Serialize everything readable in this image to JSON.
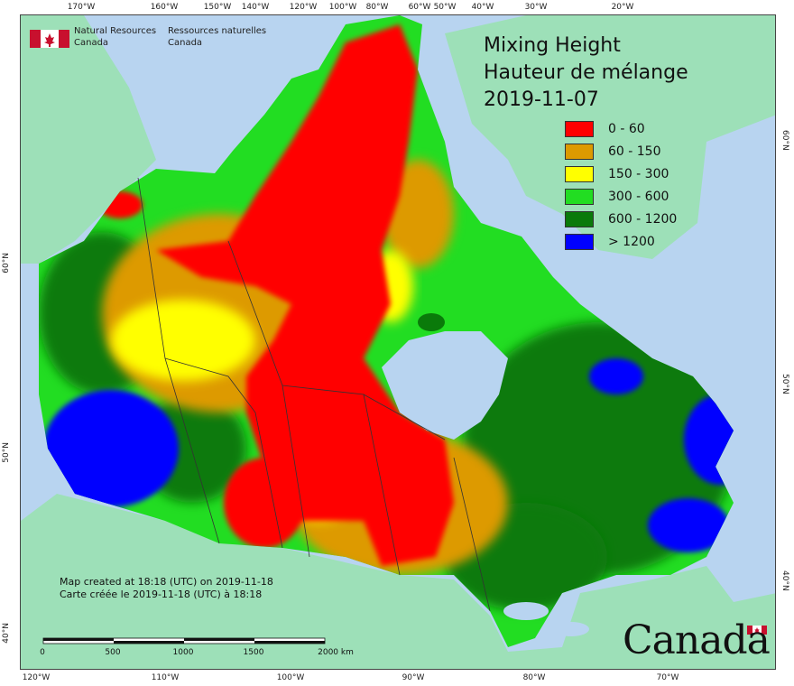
{
  "title": {
    "line1": "Mixing Height",
    "line2": "Hauteur de mélange",
    "date": "2019-11-07"
  },
  "legend": [
    {
      "label": "0 - 60",
      "color": "#ff0000"
    },
    {
      "label": "60 - 150",
      "color": "#dd9a00"
    },
    {
      "label": "150 - 300",
      "color": "#ffff00"
    },
    {
      "label": "300 - 600",
      "color": "#22dd22"
    },
    {
      "label": "600 - 1200",
      "color": "#0a7a0a"
    },
    {
      "label": "> 1200",
      "color": "#0000ff"
    }
  ],
  "agency": {
    "en_line1": "Natural Resources",
    "en_line2": "Canada",
    "fr_line1": "Ressources naturelles",
    "fr_line2": "Canada"
  },
  "credit": {
    "en": "Map created at 18:18 (UTC) on 2019-11-18",
    "fr": "Carte créée le 2019-11-18 (UTC) à 18:18"
  },
  "scale_bar": {
    "labels": [
      "0",
      "500",
      "1000",
      "1500",
      "2000 km"
    ]
  },
  "wordmark": "Canada",
  "graticule": {
    "top": [
      "170°W",
      "160°W",
      "150°W",
      "140°W",
      "120°W",
      "100°W",
      "80°W",
      "60°W",
      "50°W",
      "40°W",
      "30°W",
      "20°W"
    ],
    "bottom": [
      "120°W",
      "110°W",
      "100°W",
      "90°W",
      "80°W",
      "70°W"
    ],
    "left": [
      "60°N",
      "50°N",
      "40°N"
    ],
    "right": [
      "60°N",
      "50°N",
      "40°N"
    ]
  },
  "colors": {
    "ocean": "#b8d4f0",
    "land_other": "#9de0b8",
    "province_border": "#333333"
  }
}
